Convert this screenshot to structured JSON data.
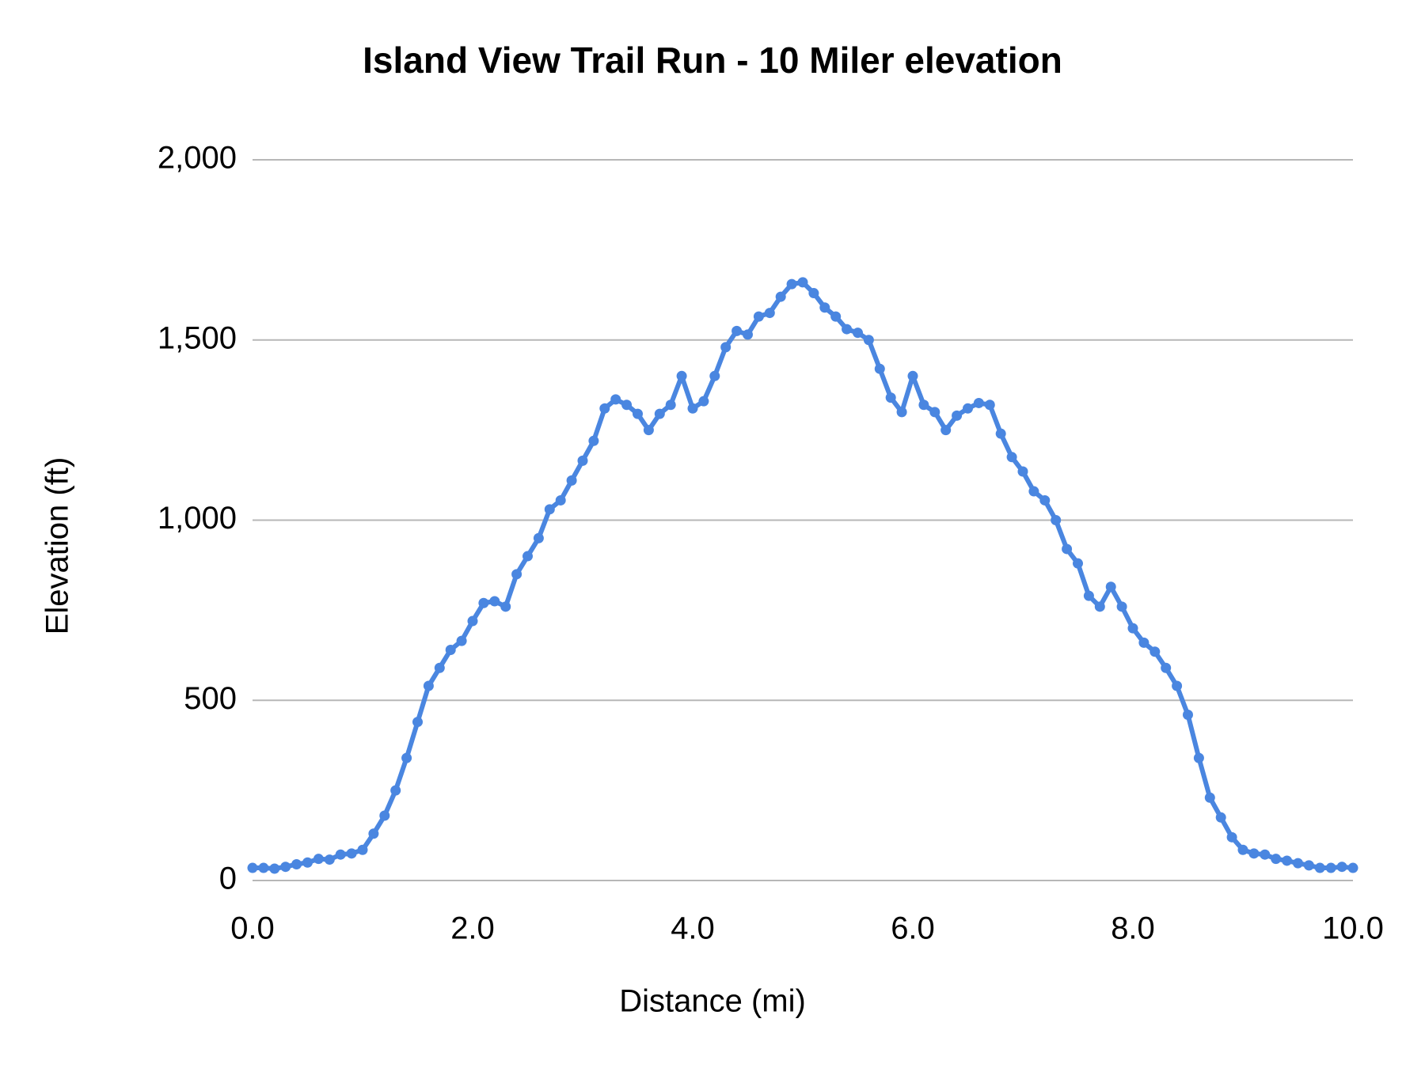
{
  "chart_data": {
    "type": "line",
    "title": "Island View Trail Run - 10 Miler elevation",
    "x_label": "Distance (mi)",
    "y_label": "Elevation (ft)",
    "x": [
      0.0,
      0.1,
      0.2,
      0.3,
      0.4,
      0.5,
      0.6,
      0.7,
      0.8,
      0.9,
      1.0,
      1.1,
      1.2,
      1.3,
      1.4,
      1.5,
      1.6,
      1.7,
      1.8,
      1.9,
      2.0,
      2.1,
      2.2,
      2.3,
      2.4,
      2.5,
      2.6,
      2.7,
      2.8,
      2.9,
      3.0,
      3.1,
      3.2,
      3.3,
      3.4,
      3.5,
      3.6,
      3.7,
      3.8,
      3.9,
      4.0,
      4.1,
      4.2,
      4.3,
      4.4,
      4.5,
      4.6,
      4.7,
      4.8,
      4.9,
      5.0,
      5.1,
      5.2,
      5.3,
      5.4,
      5.5,
      5.6,
      5.7,
      5.8,
      5.9,
      6.0,
      6.1,
      6.2,
      6.3,
      6.4,
      6.5,
      6.6,
      6.7,
      6.8,
      6.9,
      7.0,
      7.1,
      7.2,
      7.3,
      7.4,
      7.5,
      7.6,
      7.7,
      7.8,
      7.9,
      8.0,
      8.1,
      8.2,
      8.3,
      8.4,
      8.5,
      8.6,
      8.7,
      8.8,
      8.9,
      9.0,
      9.1,
      9.2,
      9.3,
      9.4,
      9.5,
      9.6,
      9.7,
      9.8,
      9.9,
      10.0
    ],
    "series": [
      {
        "name": "Elevation",
        "color": "#4a86e0",
        "values": [
          35,
          35,
          33,
          38,
          45,
          50,
          60,
          58,
          72,
          75,
          85,
          130,
          180,
          250,
          340,
          440,
          540,
          590,
          640,
          665,
          720,
          770,
          775,
          760,
          850,
          900,
          950,
          1030,
          1055,
          1110,
          1165,
          1220,
          1310,
          1335,
          1320,
          1295,
          1250,
          1295,
          1320,
          1400,
          1310,
          1330,
          1400,
          1480,
          1525,
          1515,
          1565,
          1575,
          1620,
          1655,
          1660,
          1630,
          1590,
          1565,
          1530,
          1520,
          1500,
          1420,
          1340,
          1300,
          1400,
          1320,
          1300,
          1250,
          1290,
          1310,
          1325,
          1320,
          1240,
          1175,
          1135,
          1080,
          1055,
          1000,
          920,
          880,
          790,
          760,
          815,
          760,
          700,
          660,
          635,
          590,
          540,
          460,
          340,
          230,
          175,
          120,
          85,
          75,
          72,
          60,
          55,
          48,
          42,
          35,
          35,
          38,
          35
        ]
      }
    ],
    "xlim": [
      0,
      10
    ],
    "xticks": [
      {
        "value": 0,
        "label": "0.0"
      },
      {
        "value": 2,
        "label": "2.0"
      },
      {
        "value": 4,
        "label": "4.0"
      },
      {
        "value": 6,
        "label": "6.0"
      },
      {
        "value": 8,
        "label": "8.0"
      },
      {
        "value": 10,
        "label": "10.0"
      }
    ],
    "ylim": [
      0,
      2000
    ],
    "yticks": [
      0,
      500,
      {
        "value": 1000,
        "label": "1,000"
      },
      {
        "value": 1500,
        "label": "1,500"
      },
      {
        "value": 2000,
        "label": "2,000"
      }
    ],
    "grid": true
  }
}
